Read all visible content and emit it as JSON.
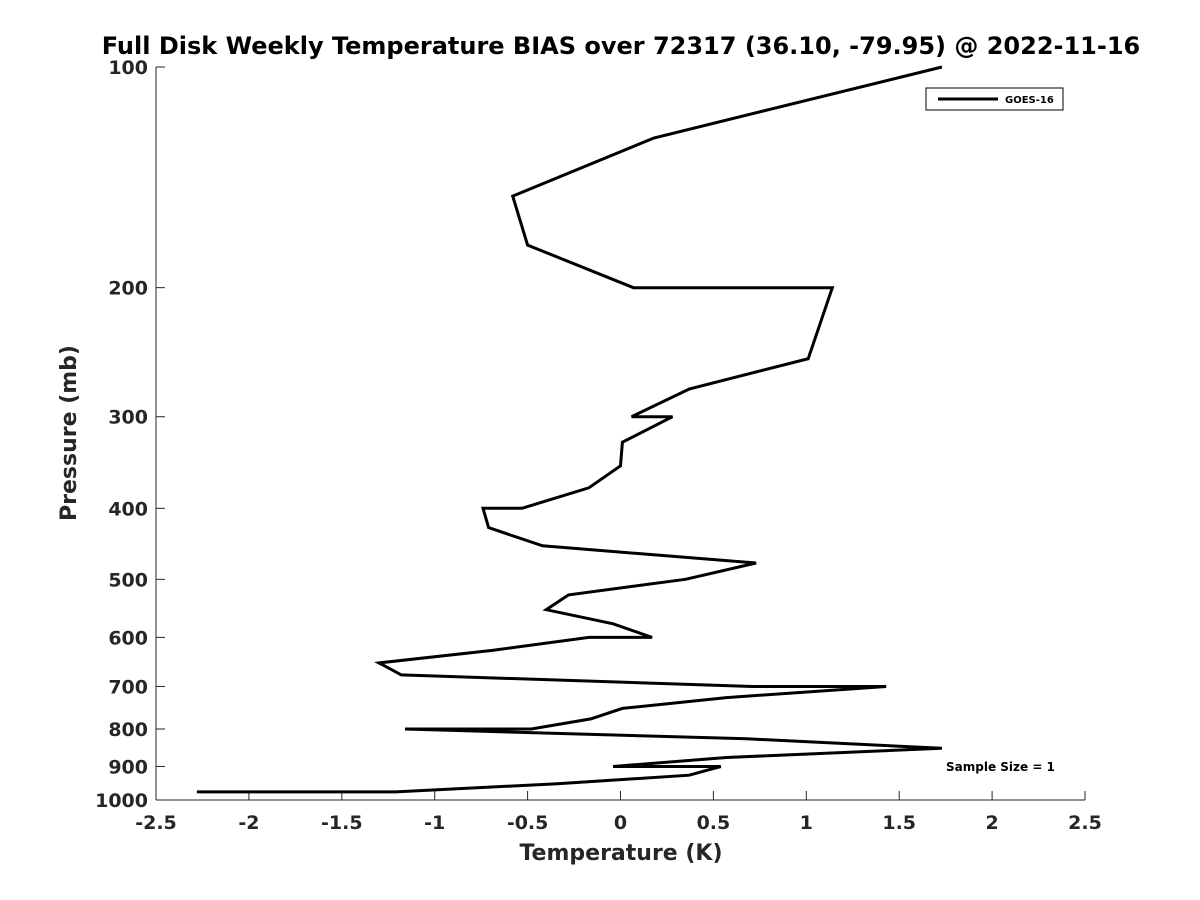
{
  "chart_data": {
    "type": "line",
    "title": "Full Disk Weekly Temperature BIAS over 72317 (36.10, -79.95) @ 2022-11-16",
    "xlabel": "Temperature (K)",
    "ylabel": "Pressure (mb)",
    "xlim": [
      -2.5,
      2.5
    ],
    "ylim": [
      100,
      1000
    ],
    "y_scale": "log",
    "y_reversed": true,
    "x_ticks": [
      -2.5,
      -2,
      -1.5,
      -1,
      -0.5,
      0,
      0.5,
      1,
      1.5,
      2,
      2.5
    ],
    "x_tick_labels": [
      "-2.5",
      "-2",
      "-1.5",
      "-1",
      "-0.5",
      "0",
      "0.5",
      "1",
      "1.5",
      "2",
      "2.5"
    ],
    "y_ticks": [
      100,
      200,
      300,
      400,
      500,
      600,
      700,
      800,
      900,
      1000
    ],
    "y_tick_labels": [
      "100",
      "200",
      "300",
      "400",
      "500",
      "600",
      "700",
      "800",
      "900",
      "1000"
    ],
    "grid": false,
    "legend": {
      "position": "top-right",
      "entries": [
        "GOES-16"
      ]
    },
    "annotation": "Sample Size = 1",
    "series": [
      {
        "name": "GOES-16",
        "color": "#000000",
        "points": [
          [
            1.73,
            100
          ],
          [
            0.18,
            125
          ],
          [
            -0.58,
            150
          ],
          [
            -0.5,
            175
          ],
          [
            0.07,
            200
          ],
          [
            1.14,
            200
          ],
          [
            1.01,
            250
          ],
          [
            0.37,
            275
          ],
          [
            0.06,
            300
          ],
          [
            0.28,
            300
          ],
          [
            0.01,
            325
          ],
          [
            0.0,
            350
          ],
          [
            -0.17,
            375
          ],
          [
            -0.53,
            400
          ],
          [
            -0.74,
            400
          ],
          [
            -0.71,
            425
          ],
          [
            -0.42,
            450
          ],
          [
            0.73,
            475
          ],
          [
            0.35,
            500
          ],
          [
            -0.28,
            525
          ],
          [
            -0.4,
            550
          ],
          [
            -0.04,
            575
          ],
          [
            0.17,
            600
          ],
          [
            -0.17,
            600
          ],
          [
            -0.69,
            625
          ],
          [
            -1.3,
            650
          ],
          [
            -1.18,
            675
          ],
          [
            0.71,
            700
          ],
          [
            1.43,
            700
          ],
          [
            0.57,
            725
          ],
          [
            0.01,
            750
          ],
          [
            -0.16,
            775
          ],
          [
            -0.48,
            800
          ],
          [
            -1.16,
            800
          ],
          [
            0.68,
            825
          ],
          [
            1.73,
            850
          ],
          [
            0.57,
            875
          ],
          [
            -0.04,
            900
          ],
          [
            0.54,
            900
          ],
          [
            0.37,
            925
          ],
          [
            -0.34,
            950
          ],
          [
            -1.21,
            975
          ],
          [
            -2.28,
            975
          ]
        ]
      }
    ]
  }
}
